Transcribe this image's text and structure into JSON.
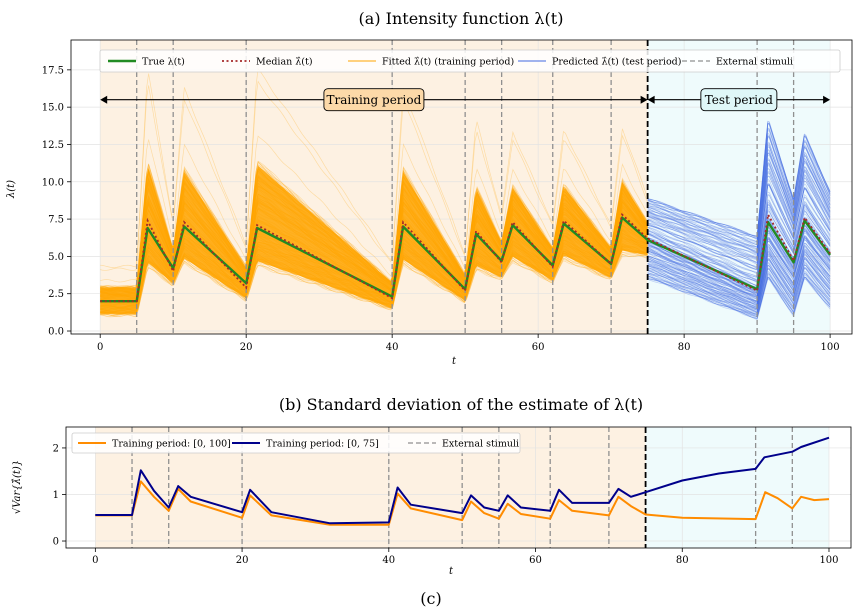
{
  "figure_caption": "(c)",
  "chart_data": [
    {
      "type": "line",
      "title": "(a) Intensity function λ(t)",
      "xlabel": "t",
      "ylabel": "λ(t)",
      "xlim": [
        -4,
        103
      ],
      "ylim": [
        -0.2,
        19.5
      ],
      "xticks": [
        0,
        20,
        40,
        60,
        80,
        100
      ],
      "yticks": [
        0.0,
        2.5,
        5.0,
        7.5,
        10.0,
        12.5,
        15.0,
        17.5
      ],
      "ytick_labels": [
        "0.0",
        "2.5",
        "5.0",
        "7.5",
        "10.0",
        "12.5",
        "15.0",
        "17.5"
      ],
      "grid": true,
      "legend_position": "top",
      "legend": [
        {
          "label": "True λ(t)",
          "style": "solid-thick",
          "color": "#228b22"
        },
        {
          "label": "Median λ̂(t)",
          "style": "dotted",
          "color": "#a52a2a"
        },
        {
          "label": "Fitted λ̂(t) (training period)",
          "style": "solid",
          "color": "#ffa500"
        },
        {
          "label": "Predicted λ̂(t) (test period)",
          "style": "solid",
          "color": "#4169e1"
        },
        {
          "label": "External stimuli",
          "style": "dashed",
          "color": "#909090"
        }
      ],
      "external_stimuli": [
        5,
        10,
        20,
        40,
        50,
        55,
        62,
        70,
        90,
        95
      ],
      "train_test_split": 75,
      "annotations": [
        {
          "text": "Training period",
          "x_range": [
            0,
            75
          ],
          "y": 15.5
        },
        {
          "text": "Test period",
          "x_range": [
            75,
            100
          ],
          "y": 15.5
        }
      ],
      "series": [
        {
          "name": "True λ(t)",
          "x": [
            0,
            5,
            6.5,
            10,
            11.5,
            20,
            21.5,
            40,
            41.5,
            50,
            51.5,
            55,
            56.5,
            62,
            63.5,
            70,
            71.5,
            75,
            90,
            91.5,
            95,
            96.5,
            100
          ],
          "values": [
            2.0,
            2.0,
            6.9,
            4.2,
            7.0,
            3.2,
            6.9,
            2.3,
            7.0,
            2.8,
            6.5,
            4.7,
            7.1,
            4.4,
            7.2,
            4.5,
            7.6,
            6.1,
            2.8,
            7.3,
            4.6,
            7.4,
            5.1
          ]
        },
        {
          "name": "Median λ̂(t)",
          "x": [
            0,
            5,
            6.5,
            10,
            11.5,
            20,
            21.5,
            40,
            41.5,
            50,
            51.5,
            55,
            56.5,
            62,
            63.5,
            70,
            71.5,
            75,
            90,
            91.5,
            95,
            96.5,
            100
          ],
          "values": [
            2.0,
            2.0,
            7.4,
            4.0,
            7.3,
            2.9,
            7.1,
            2.2,
            7.3,
            2.7,
            6.7,
            4.6,
            7.3,
            4.3,
            7.4,
            4.5,
            7.8,
            6.2,
            2.7,
            7.8,
            4.7,
            7.6,
            5.2
          ]
        },
        {
          "name": "Fitted λ̂(t) (training period) — central band upper",
          "x": [
            0,
            5,
            6.5,
            10,
            11.5,
            20,
            21.5,
            40,
            41.5,
            50,
            51.5,
            55,
            56.5,
            62,
            63.5,
            70,
            71.5,
            75
          ],
          "values": [
            3.0,
            3.0,
            11.5,
            5.5,
            11.0,
            4.3,
            11.5,
            3.3,
            11.0,
            3.8,
            9.8,
            6.0,
            9.8,
            5.6,
            9.9,
            5.6,
            10.2,
            7.3
          ]
        },
        {
          "name": "Fitted λ̂(t) (training period) — central band lower",
          "x": [
            0,
            5,
            6.5,
            10,
            11.5,
            20,
            21.5,
            40,
            41.5,
            50,
            51.5,
            55,
            56.5,
            62,
            63.5,
            70,
            71.5,
            75
          ],
          "values": [
            1.0,
            1.0,
            4.2,
            3.0,
            4.5,
            2.0,
            4.3,
            1.4,
            4.4,
            1.9,
            4.0,
            3.4,
            4.6,
            3.2,
            4.7,
            3.4,
            5.0,
            4.9
          ]
        },
        {
          "name": "Predicted λ̂(t) (test period) — band upper",
          "x": [
            75,
            90,
            91.5,
            95,
            96.5,
            100
          ],
          "values": [
            9.0,
            6.5,
            14.5,
            9.0,
            13.5,
            9.5
          ]
        },
        {
          "name": "Predicted λ̂(t) (test period) — band lower",
          "x": [
            75,
            90,
            91.5,
            95,
            96.5,
            100
          ],
          "values": [
            3.5,
            0.8,
            3.5,
            1.0,
            3.5,
            1.5
          ]
        }
      ]
    },
    {
      "type": "line",
      "title": "(b) Standard deviation of the estimate of λ(t)",
      "xlabel": "t",
      "ylabel": "√Var{λ̂(t)}",
      "xlim": [
        -4,
        103
      ],
      "ylim": [
        -0.15,
        2.45
      ],
      "xticks": [
        0,
        20,
        40,
        60,
        80,
        100
      ],
      "yticks": [
        0,
        1,
        2
      ],
      "grid": true,
      "legend_position": "top-left",
      "legend": [
        {
          "label": "Training period: [0, 100]",
          "color": "#ff8c00"
        },
        {
          "label": "Training period: [0, 75]",
          "color": "#00008b"
        },
        {
          "label": "External stimuli",
          "color": "#909090"
        }
      ],
      "external_stimuli": [
        5,
        10,
        20,
        40,
        50,
        55,
        62,
        70,
        90,
        95
      ],
      "train_test_split": 75,
      "series": [
        {
          "name": "Training period: [0, 100]",
          "x": [
            0,
            5,
            6.2,
            8,
            10,
            11.3,
            13,
            20,
            21.1,
            24,
            32,
            40,
            41.2,
            43,
            50,
            51.2,
            53,
            55,
            56.2,
            58,
            62,
            63.2,
            65,
            70,
            71.3,
            73,
            75,
            80,
            90,
            91.3,
            93,
            95,
            96.2,
            98,
            100
          ],
          "values": [
            0.55,
            0.55,
            1.28,
            0.95,
            0.65,
            1.12,
            0.85,
            0.5,
            0.98,
            0.55,
            0.35,
            0.35,
            1.02,
            0.7,
            0.45,
            0.85,
            0.6,
            0.48,
            0.8,
            0.58,
            0.48,
            0.88,
            0.65,
            0.55,
            0.95,
            0.75,
            0.57,
            0.5,
            0.47,
            1.05,
            0.92,
            0.7,
            0.95,
            0.88,
            0.9
          ]
        },
        {
          "name": "Training period: [0, 75]",
          "x": [
            0,
            5,
            6.2,
            8,
            10,
            11.3,
            13,
            20,
            21.1,
            24,
            32,
            40,
            41.2,
            43,
            50,
            51.2,
            53,
            55,
            56.2,
            58,
            62,
            63.2,
            65,
            70,
            71.3,
            73,
            75,
            80,
            85,
            90,
            91.2,
            95,
            96.2,
            100
          ],
          "values": [
            0.56,
            0.56,
            1.52,
            1.08,
            0.72,
            1.18,
            0.95,
            0.62,
            1.1,
            0.62,
            0.38,
            0.4,
            1.15,
            0.78,
            0.6,
            0.98,
            0.72,
            0.65,
            0.98,
            0.72,
            0.65,
            1.1,
            0.82,
            0.82,
            1.12,
            0.95,
            1.05,
            1.3,
            1.45,
            1.55,
            1.8,
            1.92,
            2.02,
            2.22
          ]
        }
      ]
    }
  ]
}
